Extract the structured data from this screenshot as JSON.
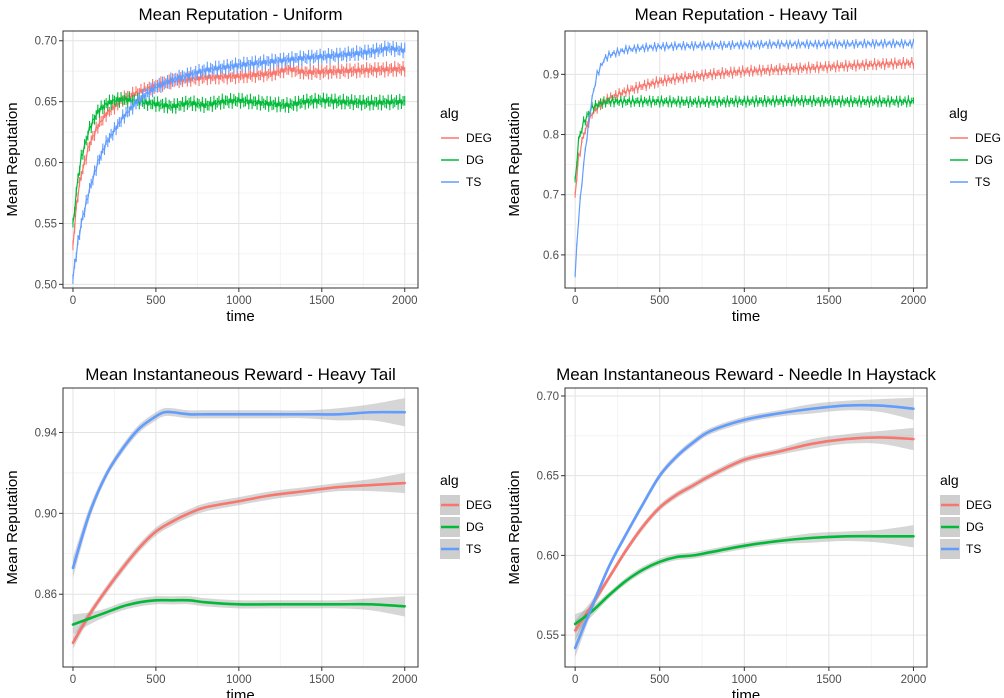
{
  "chart_data": [
    {
      "type": "line",
      "title": "Mean Reputation - Uniform",
      "xlabel": "time",
      "ylabel": "Mean Reputation",
      "xlim": [
        -60,
        2080
      ],
      "ylim": [
        0.497,
        0.708
      ],
      "xticks": [
        0,
        500,
        1000,
        1500,
        2000
      ],
      "xtick_labels": [
        "0",
        "500",
        "1000",
        "1500",
        "2000"
      ],
      "yticks": [
        0.5,
        0.55,
        0.6,
        0.65,
        0.7
      ],
      "ytick_labels": [
        "0.50",
        "0.55",
        "0.60",
        "0.65",
        "0.70"
      ],
      "style": "errorbar",
      "grid": true,
      "legend": {
        "title": "alg",
        "position": "right"
      },
      "series": [
        {
          "name": "DEG",
          "color": "#F8766D",
          "err": 0.004,
          "x": [
            0,
            25,
            50,
            100,
            150,
            200,
            300,
            400,
            500,
            600,
            800,
            1000,
            1200,
            1300,
            1400,
            1600,
            1800,
            2000
          ],
          "y": [
            0.532,
            0.57,
            0.59,
            0.615,
            0.63,
            0.64,
            0.652,
            0.658,
            0.663,
            0.667,
            0.67,
            0.671,
            0.673,
            0.677,
            0.674,
            0.675,
            0.676,
            0.677
          ]
        },
        {
          "name": "DG",
          "color": "#00BA38",
          "err": 0.004,
          "x": [
            0,
            25,
            50,
            100,
            150,
            200,
            250,
            300,
            400,
            500,
            600,
            700,
            800,
            900,
            1000,
            1200,
            1300,
            1400,
            1500,
            1600,
            1800,
            2000
          ],
          "y": [
            0.548,
            0.582,
            0.604,
            0.628,
            0.642,
            0.648,
            0.651,
            0.652,
            0.65,
            0.648,
            0.646,
            0.649,
            0.647,
            0.65,
            0.651,
            0.648,
            0.647,
            0.65,
            0.651,
            0.65,
            0.649,
            0.65
          ]
        },
        {
          "name": "TS",
          "color": "#619CFF",
          "err": 0.004,
          "x": [
            0,
            25,
            50,
            100,
            150,
            200,
            300,
            400,
            500,
            600,
            700,
            800,
            1000,
            1200,
            1400,
            1600,
            1800,
            1900,
            2000
          ],
          "y": [
            0.505,
            0.53,
            0.55,
            0.578,
            0.6,
            0.616,
            0.637,
            0.652,
            0.662,
            0.668,
            0.672,
            0.676,
            0.68,
            0.683,
            0.686,
            0.688,
            0.691,
            0.694,
            0.692
          ]
        }
      ]
    },
    {
      "type": "line",
      "title": "Mean Reputation - Heavy Tail",
      "xlabel": "time",
      "ylabel": "Mean Reputation",
      "xlim": [
        -60,
        2080
      ],
      "ylim": [
        0.545,
        0.972
      ],
      "xticks": [
        0,
        500,
        1000,
        1500,
        2000
      ],
      "xtick_labels": [
        "0",
        "500",
        "1000",
        "1500",
        "2000"
      ],
      "yticks": [
        0.6,
        0.7,
        0.8,
        0.9
      ],
      "ytick_labels": [
        "0.6",
        "0.7",
        "0.8",
        "0.9"
      ],
      "style": "errorbar",
      "grid": true,
      "legend": {
        "title": "alg",
        "position": "right"
      },
      "series": [
        {
          "name": "DEG",
          "color": "#F8766D",
          "err": 0.005,
          "x": [
            0,
            20,
            50,
            100,
            150,
            200,
            300,
            400,
            500,
            600,
            800,
            1000,
            1200,
            1400,
            1600,
            1800,
            2000
          ],
          "y": [
            0.7,
            0.76,
            0.8,
            0.835,
            0.85,
            0.86,
            0.872,
            0.881,
            0.888,
            0.893,
            0.9,
            0.905,
            0.908,
            0.911,
            0.914,
            0.917,
            0.919
          ]
        },
        {
          "name": "DG",
          "color": "#00BA38",
          "err": 0.005,
          "x": [
            0,
            20,
            50,
            100,
            150,
            200,
            300,
            500,
            700,
            1000,
            1300,
            1600,
            2000
          ],
          "y": [
            0.72,
            0.79,
            0.82,
            0.845,
            0.852,
            0.855,
            0.855,
            0.855,
            0.854,
            0.855,
            0.856,
            0.855,
            0.855
          ]
        },
        {
          "name": "TS",
          "color": "#619CFF",
          "err": 0.003,
          "x": [
            0,
            20,
            50,
            80,
            100,
            130,
            170,
            200,
            300,
            400,
            500,
            600,
            800,
            1000,
            1200,
            1500,
            1800,
            2000
          ],
          "y": [
            0.567,
            0.66,
            0.75,
            0.82,
            0.86,
            0.9,
            0.924,
            0.932,
            0.941,
            0.944,
            0.946,
            0.947,
            0.948,
            0.949,
            0.95,
            0.95,
            0.951,
            0.951
          ]
        }
      ]
    },
    {
      "type": "line",
      "title": "Mean Instantaneous Reward - Heavy Tail",
      "xlabel": "time",
      "ylabel": "Mean Reputation",
      "xlim": [
        -60,
        2080
      ],
      "ylim": [
        0.824,
        0.962
      ],
      "xticks": [
        0,
        500,
        1000,
        1500,
        2000
      ],
      "xtick_labels": [
        "0",
        "500",
        "1000",
        "1500",
        "2000"
      ],
      "yticks": [
        0.86,
        0.9,
        0.94
      ],
      "ytick_labels": [
        "0.86",
        "0.90",
        "0.94"
      ],
      "style": "smooth",
      "grid": true,
      "legend": {
        "title": "alg",
        "position": "right"
      },
      "series": [
        {
          "name": "DEG",
          "color": "#F8766D",
          "x": [
            0,
            100,
            200,
            300,
            400,
            500,
            600,
            700,
            800,
            1000,
            1200,
            1400,
            1600,
            1800,
            2000
          ],
          "y": [
            0.836,
            0.85,
            0.862,
            0.873,
            0.883,
            0.891,
            0.896,
            0.9,
            0.903,
            0.906,
            0.909,
            0.911,
            0.913,
            0.914,
            0.915
          ],
          "band": [
            0.003,
            0.002,
            0.002,
            0.002,
            0.002,
            0.002,
            0.002,
            0.002,
            0.002,
            0.002,
            0.002,
            0.002,
            0.002,
            0.003,
            0.005
          ]
        },
        {
          "name": "DG",
          "color": "#00BA38",
          "x": [
            0,
            100,
            200,
            300,
            400,
            500,
            600,
            700,
            800,
            1000,
            1200,
            1400,
            1600,
            1800,
            2000
          ],
          "y": [
            0.845,
            0.848,
            0.851,
            0.854,
            0.856,
            0.857,
            0.857,
            0.857,
            0.856,
            0.855,
            0.855,
            0.855,
            0.855,
            0.855,
            0.854
          ],
          "band": [
            0.005,
            0.003,
            0.002,
            0.002,
            0.002,
            0.002,
            0.002,
            0.002,
            0.002,
            0.002,
            0.002,
            0.002,
            0.002,
            0.003,
            0.005
          ]
        },
        {
          "name": "TS",
          "color": "#619CFF",
          "x": [
            0,
            100,
            200,
            300,
            400,
            500,
            550,
            600,
            700,
            800,
            1000,
            1200,
            1400,
            1600,
            1800,
            2000
          ],
          "y": [
            0.873,
            0.9,
            0.919,
            0.932,
            0.942,
            0.948,
            0.95,
            0.95,
            0.949,
            0.949,
            0.949,
            0.949,
            0.949,
            0.949,
            0.95,
            0.95
          ],
          "band": [
            0.005,
            0.003,
            0.002,
            0.002,
            0.002,
            0.002,
            0.002,
            0.002,
            0.002,
            0.002,
            0.002,
            0.002,
            0.002,
            0.003,
            0.004,
            0.007
          ]
        }
      ]
    },
    {
      "type": "line",
      "title": "Mean Instantaneous Reward - Needle In Haystack",
      "xlabel": "time",
      "ylabel": "Mean Reputation",
      "xlim": [
        -60,
        2080
      ],
      "ylim": [
        0.53,
        0.705
      ],
      "xticks": [
        0,
        500,
        1000,
        1500,
        2000
      ],
      "xtick_labels": [
        "0",
        "500",
        "1000",
        "1500",
        "2000"
      ],
      "yticks": [
        0.55,
        0.6,
        0.65,
        0.7
      ],
      "ytick_labels": [
        "0.55",
        "0.60",
        "0.65",
        "0.70"
      ],
      "style": "smooth",
      "grid": true,
      "legend": {
        "title": "alg",
        "position": "right"
      },
      "series": [
        {
          "name": "DEG",
          "color": "#F8766D",
          "x": [
            0,
            100,
            200,
            300,
            400,
            500,
            600,
            700,
            800,
            1000,
            1200,
            1400,
            1600,
            1800,
            2000
          ],
          "y": [
            0.553,
            0.569,
            0.586,
            0.603,
            0.618,
            0.63,
            0.638,
            0.644,
            0.65,
            0.66,
            0.665,
            0.67,
            0.673,
            0.674,
            0.673
          ],
          "band": [
            0.006,
            0.003,
            0.002,
            0.002,
            0.002,
            0.002,
            0.002,
            0.002,
            0.002,
            0.002,
            0.002,
            0.003,
            0.003,
            0.004,
            0.007
          ]
        },
        {
          "name": "DG",
          "color": "#00BA38",
          "x": [
            0,
            100,
            200,
            300,
            400,
            500,
            600,
            700,
            800,
            1000,
            1200,
            1400,
            1600,
            1800,
            2000
          ],
          "y": [
            0.557,
            0.565,
            0.575,
            0.584,
            0.591,
            0.596,
            0.599,
            0.6,
            0.602,
            0.606,
            0.609,
            0.611,
            0.612,
            0.612,
            0.612
          ],
          "band": [
            0.006,
            0.003,
            0.002,
            0.002,
            0.002,
            0.002,
            0.002,
            0.002,
            0.002,
            0.002,
            0.002,
            0.003,
            0.003,
            0.004,
            0.007
          ]
        },
        {
          "name": "TS",
          "color": "#619CFF",
          "x": [
            0,
            100,
            200,
            300,
            400,
            500,
            600,
            700,
            800,
            1000,
            1200,
            1400,
            1600,
            1800,
            2000
          ],
          "y": [
            0.542,
            0.568,
            0.593,
            0.613,
            0.632,
            0.65,
            0.662,
            0.671,
            0.678,
            0.685,
            0.689,
            0.692,
            0.694,
            0.694,
            0.692
          ],
          "band": [
            0.006,
            0.003,
            0.002,
            0.002,
            0.002,
            0.002,
            0.002,
            0.002,
            0.002,
            0.002,
            0.002,
            0.003,
            0.003,
            0.004,
            0.007
          ]
        }
      ]
    }
  ]
}
